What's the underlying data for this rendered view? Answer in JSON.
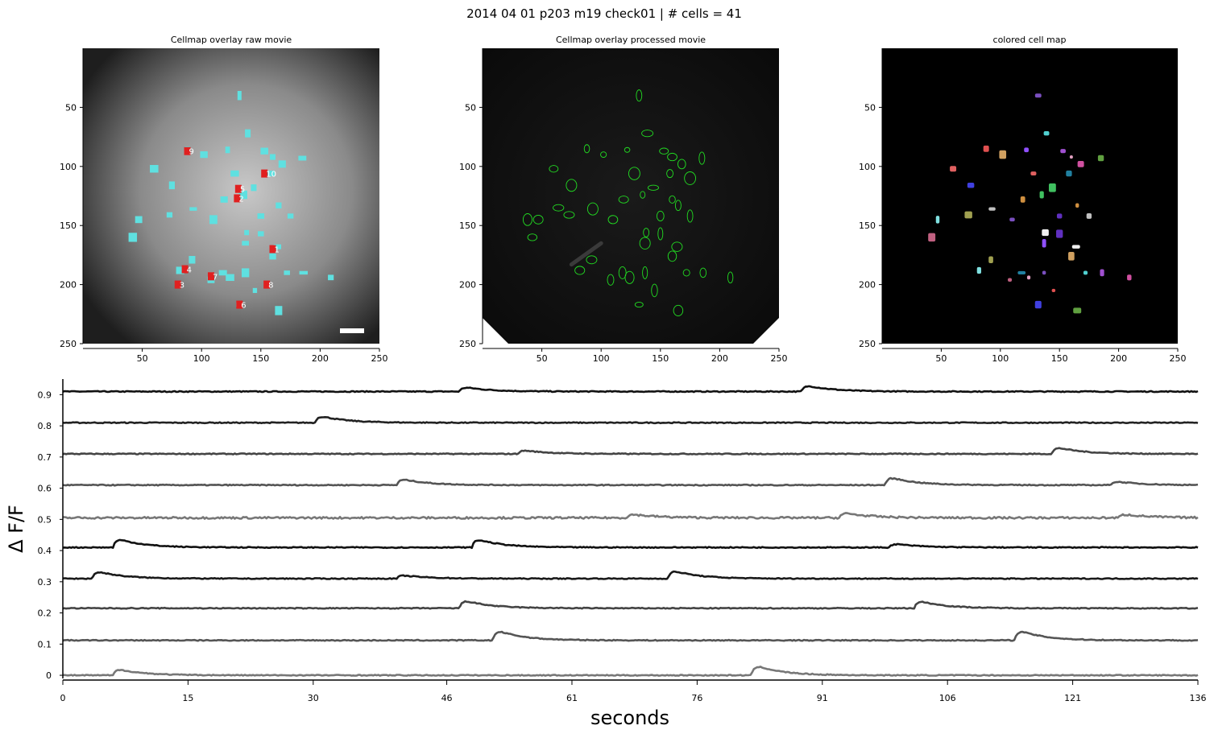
{
  "figure": {
    "title": "2014 04 01 p203 m19 check01 | # cells = 41"
  },
  "chart_data": [
    {
      "type": "heatmap",
      "title": "Cellmap overlay raw movie",
      "x_ticks": [
        50,
        100,
        150,
        200,
        250
      ],
      "y_ticks": [
        50,
        100,
        150,
        200,
        250
      ],
      "xlim": [
        0,
        250
      ],
      "ylim": [
        250,
        0
      ],
      "background": "grayscale raw fluorescence image",
      "overlay_color": "#5fe0e0",
      "highlight_color": "#e02020",
      "labeled_cells": [
        {
          "label": "1",
          "x": 160,
          "y": 170
        },
        {
          "label": "2",
          "x": 130,
          "y": 127
        },
        {
          "label": "3",
          "x": 80,
          "y": 200
        },
        {
          "label": "4",
          "x": 86,
          "y": 187
        },
        {
          "label": "5",
          "x": 131,
          "y": 119
        },
        {
          "label": "6",
          "x": 132,
          "y": 217
        },
        {
          "label": "7",
          "x": 108,
          "y": 193
        },
        {
          "label": "8",
          "x": 155,
          "y": 200
        },
        {
          "label": "9",
          "x": 88,
          "y": 87
        },
        {
          "label": "10",
          "x": 153,
          "y": 106
        }
      ]
    },
    {
      "type": "heatmap",
      "title": "Cellmap overlay processed movie",
      "x_ticks": [
        50,
        100,
        150,
        200,
        250
      ],
      "y_ticks": [
        50,
        100,
        150,
        200,
        250
      ],
      "xlim": [
        0,
        250
      ],
      "ylim": [
        250,
        0
      ],
      "background": "dark processed image",
      "outline_color": "#22dd22"
    },
    {
      "type": "heatmap",
      "title": "colored cell map",
      "x_ticks": [
        50,
        100,
        150,
        200,
        250
      ],
      "y_ticks": [
        50,
        100,
        150,
        200,
        250
      ],
      "xlim": [
        0,
        250
      ],
      "ylim": [
        250,
        0
      ],
      "background": "#000000"
    },
    {
      "type": "line",
      "xlabel": "seconds",
      "ylabel": "Δ F/F",
      "x_ticks": [
        0,
        15,
        30,
        46,
        61,
        76,
        91,
        106,
        121,
        136
      ],
      "y_ticks": [
        "0",
        "0.1",
        "0.2",
        "0.3",
        "0.4",
        "0.5",
        "0.6",
        "0.7",
        "0.8",
        "0.9"
      ],
      "xlim": [
        0,
        136
      ],
      "ylim": [
        -0.005,
        0.95
      ],
      "series": [
        {
          "baseline": 0.91,
          "color": "#111111",
          "events": [
            [
              47.5,
              0.018
            ],
            [
              88.5,
              0.025
            ]
          ]
        },
        {
          "baseline": 0.81,
          "color": "#222222",
          "events": [
            [
              30.2,
              0.028
            ]
          ]
        },
        {
          "baseline": 0.71,
          "color": "#444444",
          "events": [
            [
              54.5,
              0.015
            ],
            [
              118.5,
              0.027
            ]
          ]
        },
        {
          "baseline": 0.61,
          "color": "#555555",
          "events": [
            [
              40.0,
              0.025
            ],
            [
              98.5,
              0.032
            ],
            [
              125.5,
              0.015
            ]
          ]
        },
        {
          "baseline": 0.505,
          "color": "#777777",
          "noisy": true,
          "events": [
            [
              67.5,
              0.015
            ],
            [
              93.0,
              0.02
            ],
            [
              126.5,
              0.015
            ]
          ]
        },
        {
          "baseline": 0.41,
          "color": "#111111",
          "events": [
            [
              6.0,
              0.035
            ],
            [
              49.0,
              0.034
            ],
            [
              99.0,
              0.015
            ]
          ]
        },
        {
          "baseline": 0.31,
          "color": "#1a1a1a",
          "events": [
            [
              3.5,
              0.03
            ],
            [
              40.0,
              0.014
            ],
            [
              72.5,
              0.033
            ]
          ]
        },
        {
          "baseline": 0.215,
          "color": "#444444",
          "events": [
            [
              47.5,
              0.032
            ],
            [
              102.0,
              0.03
            ]
          ]
        },
        {
          "baseline": 0.112,
          "color": "#555555",
          "events": [
            [
              51.5,
              0.04
            ],
            [
              114.0,
              0.04
            ]
          ]
        },
        {
          "baseline": 0.0,
          "color": "#777777",
          "events": [
            [
              6.0,
              0.025
            ],
            [
              82.5,
              0.04
            ]
          ]
        }
      ]
    }
  ]
}
